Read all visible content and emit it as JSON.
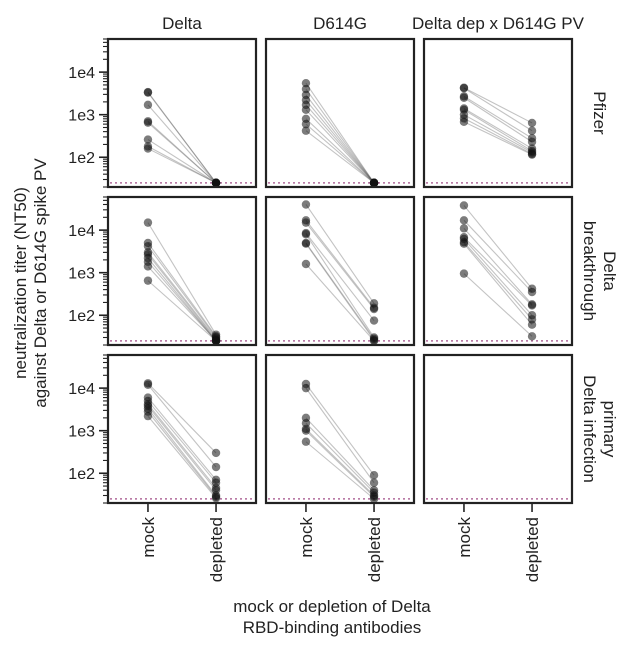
{
  "chart_data": {
    "type": "scatter",
    "columns": [
      "Delta",
      "D614G",
      "Delta dep x D614G PV"
    ],
    "rows": [
      "Pfizer",
      "Delta\nbreakthrough",
      "primary\nDelta infection"
    ],
    "x_categories": [
      "mock",
      "depleted"
    ],
    "ylabel": "neutralization titer (NT50)\nagainst Delta or D614G spike PV",
    "xlabel": "mock or depletion of Delta\nRBD-binding antibodies",
    "yscale": "log",
    "ylim": [
      20,
      60000
    ],
    "ytick_labels": [
      "1e2",
      "1e3",
      "1e4"
    ],
    "ytick_values": [
      100,
      1000,
      10000
    ],
    "detection_limit": 25,
    "colors": {
      "point": "#111111",
      "line": "#777777",
      "detection_limit": "#b06a9b",
      "frame": "#222222"
    },
    "panels": [
      {
        "row": 0,
        "col": 0,
        "pairs": [
          [
            3400,
            25
          ],
          [
            3300,
            25
          ],
          [
            1700,
            25
          ],
          [
            700,
            25
          ],
          [
            650,
            25
          ],
          [
            260,
            25
          ],
          [
            180,
            25
          ],
          [
            160,
            25
          ]
        ]
      },
      {
        "row": 0,
        "col": 1,
        "pairs": [
          [
            5500,
            25
          ],
          [
            4000,
            25
          ],
          [
            2900,
            25
          ],
          [
            2200,
            25
          ],
          [
            1700,
            25
          ],
          [
            1300,
            25
          ],
          [
            800,
            25
          ],
          [
            600,
            25
          ],
          [
            420,
            25
          ]
        ]
      },
      {
        "row": 0,
        "col": 2,
        "pairs": [
          [
            4300,
            640
          ],
          [
            4200,
            420
          ],
          [
            2700,
            280
          ],
          [
            2500,
            230
          ],
          [
            1400,
            160
          ],
          [
            1300,
            140
          ],
          [
            1000,
            130
          ],
          [
            820,
            120
          ],
          [
            680,
            115
          ]
        ]
      },
      {
        "row": 1,
        "col": 0,
        "pairs": [
          [
            15000,
            35
          ],
          [
            5000,
            32
          ],
          [
            4200,
            30
          ],
          [
            3000,
            28
          ],
          [
            2700,
            26
          ],
          [
            2200,
            25
          ],
          [
            1800,
            25
          ],
          [
            1400,
            25
          ],
          [
            650,
            25
          ]
        ]
      },
      {
        "row": 1,
        "col": 1,
        "pairs": [
          [
            40000,
            190
          ],
          [
            17000,
            150
          ],
          [
            15000,
            140
          ],
          [
            8500,
            75
          ],
          [
            8000,
            30
          ],
          [
            5000,
            28
          ],
          [
            4800,
            26
          ],
          [
            1600,
            25
          ]
        ]
      },
      {
        "row": 1,
        "col": 2,
        "pairs": [
          [
            38000,
            420
          ],
          [
            17000,
            350
          ],
          [
            11000,
            180
          ],
          [
            6800,
            170
          ],
          [
            6200,
            100
          ],
          [
            5200,
            80
          ],
          [
            4800,
            60
          ],
          [
            950,
            32
          ]
        ]
      },
      {
        "row": 2,
        "col": 0,
        "pairs": [
          [
            13000,
            300
          ],
          [
            12000,
            140
          ],
          [
            6000,
            70
          ],
          [
            5000,
            60
          ],
          [
            4200,
            45
          ],
          [
            3800,
            40
          ],
          [
            3300,
            30
          ],
          [
            2800,
            28
          ],
          [
            2200,
            26
          ]
        ]
      },
      {
        "row": 2,
        "col": 1,
        "pairs": [
          [
            12500,
            90
          ],
          [
            10000,
            60
          ],
          [
            2000,
            40
          ],
          [
            1500,
            35
          ],
          [
            1100,
            30
          ],
          [
            1000,
            28
          ],
          [
            550,
            25
          ]
        ]
      },
      {
        "row": 2,
        "col": 2,
        "pairs": []
      }
    ]
  }
}
